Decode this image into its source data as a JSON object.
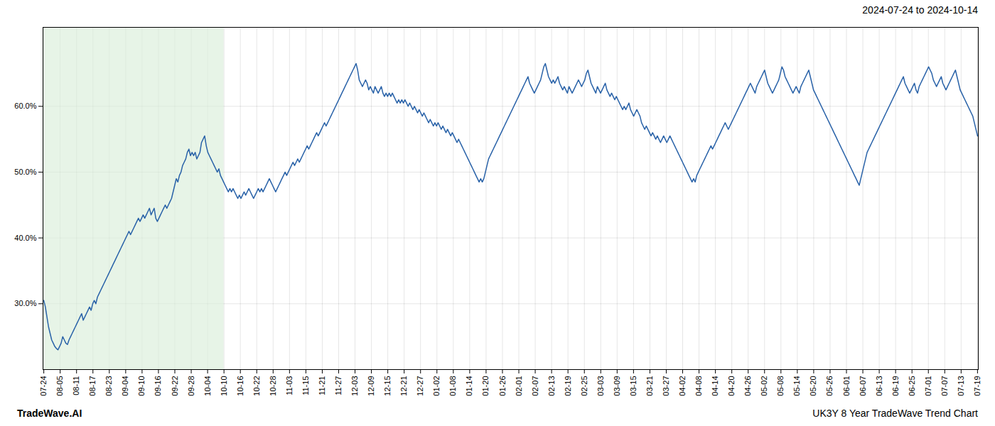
{
  "chart_data": {
    "type": "line",
    "title": "2024-07-24 to 2024-10-14",
    "footer": [
      "TradeWave.AI",
      "UK3Y 8 Year TradeWave Trend Chart"
    ],
    "color": "#2962a8",
    "grid": true,
    "ylim": [
      20,
      72
    ],
    "yticks": [
      {
        "value": 30.0,
        "label": "30.0%"
      },
      {
        "value": 40.0,
        "label": "40.0%"
      },
      {
        "value": 50.0,
        "label": "50.0%"
      },
      {
        "value": 60.0,
        "label": "60.0%"
      }
    ],
    "xticks": [
      "07-24",
      "08-05",
      "08-11",
      "08-17",
      "08-23",
      "09-04",
      "09-10",
      "09-16",
      "09-22",
      "09-28",
      "10-04",
      "10-10",
      "10-16",
      "10-22",
      "10-28",
      "11-03",
      "11-15",
      "11-21",
      "11-27",
      "12-03",
      "12-09",
      "12-15",
      "12-21",
      "12-27",
      "01-02",
      "01-08",
      "01-14",
      "01-20",
      "01-26",
      "02-01",
      "02-07",
      "02-13",
      "02-19",
      "02-25",
      "03-03",
      "03-09",
      "03-15",
      "03-21",
      "03-27",
      "04-02",
      "04-08",
      "04-14",
      "04-20",
      "04-26",
      "05-02",
      "05-08",
      "05-14",
      "05-20",
      "05-26",
      "06-01",
      "06-07",
      "06-13",
      "06-19",
      "06-25",
      "07-01",
      "07-07",
      "07-13",
      "07-19"
    ],
    "shaded_region": {
      "end": "10-10",
      "color": "#daeeda"
    },
    "values": [
      30.5,
      29.5,
      28.0,
      26.5,
      25.5,
      24.5,
      24.0,
      23.5,
      23.2,
      23.0,
      23.5,
      24.0,
      25.0,
      24.5,
      24.0,
      23.8,
      24.5,
      25.0,
      25.5,
      26.0,
      26.5,
      27.0,
      27.5,
      28.0,
      28.5,
      27.5,
      28.0,
      28.5,
      29.0,
      29.5,
      29.0,
      30.0,
      30.5,
      30.0,
      31.0,
      31.5,
      32.0,
      32.5,
      33.0,
      33.5,
      34.0,
      34.5,
      35.0,
      35.5,
      36.0,
      36.5,
      37.0,
      37.5,
      38.0,
      38.5,
      39.0,
      39.5,
      40.0,
      40.5,
      41.0,
      40.5,
      41.0,
      41.5,
      42.0,
      42.5,
      43.0,
      42.5,
      43.0,
      43.5,
      43.0,
      43.5,
      44.0,
      44.5,
      43.5,
      44.0,
      44.5,
      43.0,
      42.5,
      43.0,
      43.5,
      44.0,
      44.5,
      45.0,
      44.5,
      45.0,
      45.5,
      46.0,
      47.0,
      48.0,
      49.0,
      48.5,
      49.5,
      50.0,
      51.0,
      51.5,
      52.0,
      53.0,
      53.5,
      52.5,
      53.0,
      52.5,
      53.0,
      52.0,
      52.5,
      53.0,
      54.5,
      55.0,
      55.5,
      54.0,
      53.0,
      52.5,
      52.0,
      51.5,
      51.0,
      50.5,
      50.0,
      50.5,
      49.5,
      49.0,
      48.5,
      48.0,
      47.5,
      47.0,
      47.5,
      47.0,
      47.5,
      47.0,
      46.5,
      46.0,
      46.5,
      46.0,
      46.5,
      47.0,
      46.5,
      47.0,
      47.5,
      47.0,
      46.5,
      46.0,
      46.5,
      47.0,
      47.5,
      47.0,
      47.5,
      47.0,
      47.5,
      48.0,
      48.5,
      49.0,
      48.5,
      48.0,
      47.5,
      47.0,
      47.5,
      48.0,
      48.5,
      49.0,
      49.5,
      50.0,
      49.5,
      50.0,
      50.5,
      51.0,
      51.5,
      51.0,
      51.5,
      52.0,
      51.5,
      52.0,
      52.5,
      53.0,
      53.5,
      54.0,
      53.5,
      54.0,
      54.5,
      55.0,
      55.5,
      56.0,
      55.5,
      56.0,
      56.5,
      57.0,
      57.5,
      57.0,
      57.5,
      58.0,
      58.5,
      59.0,
      59.5,
      60.0,
      60.5,
      61.0,
      61.5,
      62.0,
      62.5,
      63.0,
      63.5,
      64.0,
      64.5,
      65.0,
      65.5,
      66.0,
      66.5,
      65.5,
      64.0,
      63.5,
      63.0,
      63.5,
      64.0,
      63.5,
      62.5,
      63.0,
      62.5,
      62.0,
      63.0,
      62.5,
      62.0,
      62.5,
      63.0,
      62.0,
      61.5,
      62.0,
      61.5,
      62.0,
      61.5,
      62.0,
      61.5,
      61.0,
      60.5,
      61.0,
      60.5,
      61.0,
      60.5,
      61.0,
      60.5,
      60.0,
      60.5,
      60.0,
      59.5,
      60.0,
      59.5,
      59.0,
      59.5,
      59.0,
      58.5,
      59.0,
      58.5,
      58.0,
      57.5,
      58.0,
      57.5,
      57.0,
      57.5,
      57.0,
      57.5,
      57.0,
      56.5,
      57.0,
      56.5,
      56.0,
      56.5,
      56.0,
      55.5,
      56.0,
      55.5,
      55.0,
      54.5,
      55.0,
      54.5,
      54.0,
      53.5,
      53.0,
      52.5,
      52.0,
      51.5,
      51.0,
      50.5,
      50.0,
      49.5,
      49.0,
      48.5,
      49.0,
      48.5,
      49.0,
      50.0,
      51.0,
      52.0,
      52.5,
      53.0,
      53.5,
      54.0,
      54.5,
      55.0,
      55.5,
      56.0,
      56.5,
      57.0,
      57.5,
      58.0,
      58.5,
      59.0,
      59.5,
      60.0,
      60.5,
      61.0,
      61.5,
      62.0,
      62.5,
      63.0,
      63.5,
      64.0,
      64.5,
      63.5,
      63.0,
      62.5,
      62.0,
      62.5,
      63.0,
      63.5,
      64.0,
      65.0,
      66.0,
      66.5,
      65.5,
      64.5,
      64.0,
      63.5,
      64.0,
      63.5,
      64.0,
      64.5,
      63.5,
      63.0,
      62.5,
      63.0,
      62.5,
      62.0,
      63.0,
      62.5,
      62.0,
      62.5,
      63.0,
      63.5,
      64.0,
      63.5,
      63.0,
      63.5,
      64.0,
      65.0,
      65.5,
      64.5,
      63.5,
      63.0,
      62.5,
      62.0,
      63.0,
      62.5,
      62.0,
      62.5,
      63.0,
      63.5,
      62.5,
      62.0,
      61.5,
      62.0,
      61.5,
      61.0,
      61.5,
      61.0,
      60.5,
      60.0,
      59.5,
      60.0,
      59.5,
      60.0,
      60.5,
      59.5,
      59.0,
      58.5,
      59.0,
      59.5,
      59.0,
      58.5,
      57.5,
      57.0,
      56.5,
      57.0,
      56.5,
      56.0,
      55.5,
      56.0,
      55.5,
      55.0,
      55.5,
      55.0,
      54.5,
      55.0,
      55.5,
      55.0,
      54.5,
      55.0,
      55.5,
      55.0,
      54.5,
      54.0,
      53.5,
      53.0,
      52.5,
      52.0,
      51.5,
      51.0,
      50.5,
      50.0,
      49.5,
      49.0,
      48.5,
      49.0,
      48.5,
      49.5,
      50.0,
      50.5,
      51.0,
      51.5,
      52.0,
      52.5,
      53.0,
      53.5,
      54.0,
      53.5,
      54.0,
      54.5,
      55.0,
      55.5,
      56.0,
      56.5,
      57.0,
      57.5,
      57.0,
      56.5,
      57.0,
      57.5,
      58.0,
      58.5,
      59.0,
      59.5,
      60.0,
      60.5,
      61.0,
      61.5,
      62.0,
      62.5,
      63.0,
      63.5,
      63.0,
      62.5,
      62.0,
      63.0,
      63.5,
      64.0,
      64.5,
      65.0,
      65.5,
      64.5,
      63.5,
      63.0,
      62.5,
      62.0,
      62.5,
      63.0,
      63.5,
      64.0,
      65.0,
      66.0,
      65.5,
      64.5,
      64.0,
      63.5,
      63.0,
      62.5,
      62.0,
      62.5,
      63.0,
      62.5,
      62.0,
      63.0,
      63.5,
      64.0,
      64.5,
      65.0,
      65.5,
      64.5,
      63.5,
      62.5,
      62.0,
      61.5,
      61.0,
      60.5,
      60.0,
      59.5,
      59.0,
      58.5,
      58.0,
      57.5,
      57.0,
      56.5,
      56.0,
      55.5,
      55.0,
      54.5,
      54.0,
      53.5,
      53.0,
      52.5,
      52.0,
      51.5,
      51.0,
      50.5,
      50.0,
      49.5,
      49.0,
      48.5,
      48.0,
      49.0,
      50.0,
      51.0,
      52.0,
      53.0,
      53.5,
      54.0,
      54.5,
      55.0,
      55.5,
      56.0,
      56.5,
      57.0,
      57.5,
      58.0,
      58.5,
      59.0,
      59.5,
      60.0,
      60.5,
      61.0,
      61.5,
      62.0,
      62.5,
      63.0,
      63.5,
      64.0,
      64.5,
      63.5,
      63.0,
      62.5,
      62.0,
      62.5,
      63.0,
      63.5,
      62.5,
      62.0,
      63.0,
      63.5,
      64.0,
      64.5,
      65.0,
      65.5,
      66.0,
      65.5,
      65.0,
      64.0,
      63.5,
      63.0,
      63.5,
      64.0,
      64.5,
      63.5,
      63.0,
      62.5,
      63.0,
      63.5,
      64.0,
      64.5,
      65.0,
      65.5,
      64.5,
      63.5,
      62.5,
      62.0,
      61.5,
      61.0,
      60.5,
      60.0,
      59.5,
      59.0,
      58.5,
      57.5,
      56.5,
      55.5
    ]
  }
}
